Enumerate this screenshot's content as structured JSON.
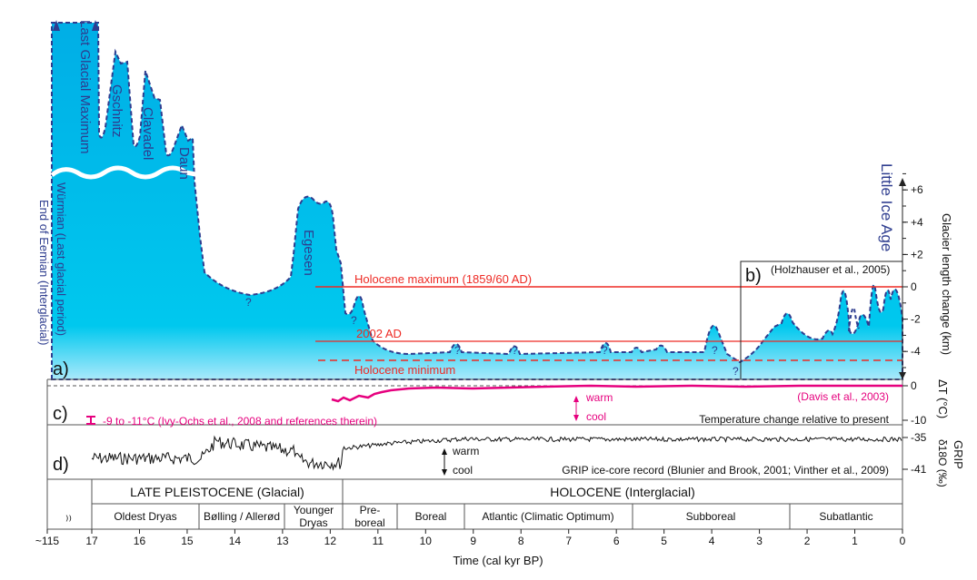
{
  "panels": {
    "a": "a)",
    "b": "b)",
    "c": "c)",
    "d": "d)"
  },
  "stadials": {
    "lgm": "Last Glacial Maximum",
    "gschnitz": "Gschnitz",
    "clavadel": "Clavadel",
    "daun": "Daun",
    "egesen": "Egesen",
    "lia": "Little Ice Age",
    "wurmian": "Würmian (Last glacial period)",
    "eemian": "End of Eemian (Interglacial)",
    "q": "?"
  },
  "lines": {
    "holo_max": "Holocene maximum (1859/60 AD)",
    "ad2002": "2002 AD",
    "holo_min": "Holocene minimum",
    "holzhauser": "(Holzhauser et al., 2005)"
  },
  "temp": {
    "ivy": "-9 to -11°C (Ivy-Ochs et al., 2008 and references therein)",
    "davis": "(Davis et al., 2003)",
    "warm": "warm",
    "cool": "cool",
    "caption": "Temperature change relative to present",
    "axis": "ΔT (°C)",
    "ticks": [
      "0",
      "-10"
    ]
  },
  "grip": {
    "warm": "warm",
    "cool": "cool",
    "caption": "GRIP ice-core record (Blunier and Brook, 2001; Vinther et al., 2009)",
    "axis1": "GRIP",
    "axis2": "δ18O (‰)",
    "ticks": [
      "-35",
      "-41"
    ]
  },
  "glacier_axis": {
    "label": "Glacier length change (km)",
    "ticks": [
      "+6",
      "+4",
      "+2",
      "0",
      "-2",
      "-4"
    ]
  },
  "periods": {
    "pleistocene": "LATE PLEISTOCENE (Glacial)",
    "holocene": "HOLOCENE (Interglacial)",
    "zones": [
      "Oldest Dryas",
      "Bølling / Allerød",
      "Younger",
      "Dryas",
      "Pre-",
      "boreal",
      "Boreal",
      "Atlantic (Climatic Optimum)",
      "Subboreal",
      "Subatlantic"
    ]
  },
  "xaxis": {
    "label": "Time (cal kyr BP)",
    "ticks": [
      "~115",
      "17",
      "16",
      "15",
      "14",
      "13",
      "12",
      "11",
      "10",
      "9",
      "8",
      "7",
      "6",
      "5",
      "4",
      "3",
      "2",
      "1",
      "0"
    ]
  },
  "colors": {
    "ice": "#00b0e6",
    "outline": "#2e3d8f",
    "red": "#ee2a24",
    "magenta": "#e6007e"
  }
}
